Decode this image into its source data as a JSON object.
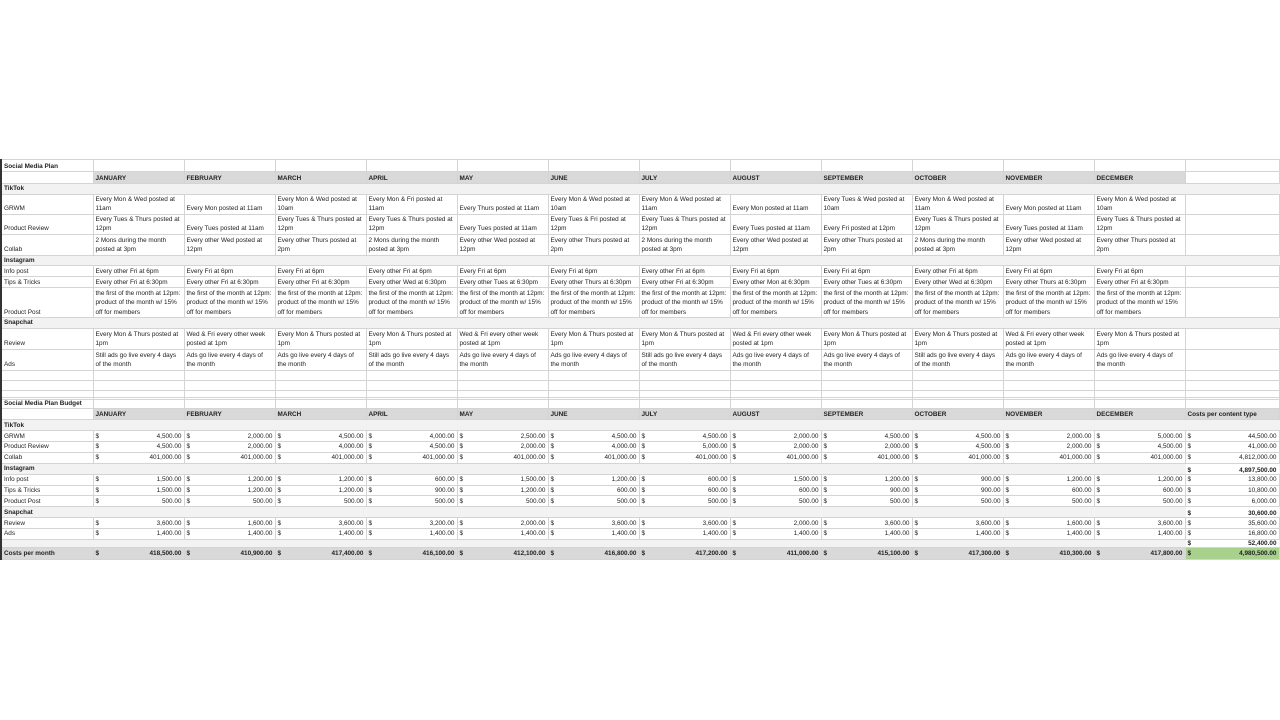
{
  "plan": {
    "title": "Social Media Plan",
    "months": [
      "JANUARY",
      "FEBRUARY",
      "MARCH",
      "APRIL",
      "MAY",
      "JUNE",
      "JULY",
      "AUGUST",
      "SEPTEMBER",
      "OCTOBER",
      "NOVEMBER",
      "DECEMBER"
    ],
    "sections": [
      {
        "name": "TikTok",
        "rows": [
          {
            "label": "GRWM",
            "values": [
              "Every Mon & Wed posted at 11am",
              "Every Mon posted at 11am",
              "Every Mon & Wed posted at 10am",
              "Every Mon & Fri posted at 11am",
              "Every Thurs posted at 11am",
              "Every Mon & Wed posted at 10am",
              "Every Mon & Wed posted at 11am",
              "Every Mon posted at 11am",
              "Every Tues & Wed posted at 10am",
              "Every Mon & Wed posted at 11am",
              "Every Mon posted at 11am",
              "Every Mon & Wed posted at 10am"
            ]
          },
          {
            "label": "Product Review",
            "values": [
              "Every Tues & Thurs posted at 12pm",
              "Every Tues posted at 11am",
              "Every Tues & Thurs posted at 12pm",
              "Every Tues & Thurs posted at 12pm",
              "Every Tues posted at 11am",
              "Every Tues & Fri posted at 12pm",
              "Every Tues & Thurs posted at 12pm",
              "Every Tues posted at 11am",
              "Every Fri posted at 12pm",
              "Every Tues & Thurs posted at 12pm",
              "Every Tues posted at 11am",
              "Every Tues & Thurs posted at 12pm"
            ]
          },
          {
            "label": "Collab",
            "values": [
              "2 Mons during the month posted at 3pm",
              "Every other Wed posted at 12pm",
              "Every other Thurs posted at 2pm",
              "2 Mons during the month posted at 3pm",
              "Every other Wed posted at 12pm",
              "Every other Thurs posted at 2pm",
              "2 Mons during the month posted at 3pm",
              "Every other Wed posted at 12pm",
              "Every other Thurs posted at 2pm",
              "2 Mons during the month posted at 3pm",
              "Every other Wed posted at 12pm",
              "Every other Thurs posted at 2pm"
            ]
          }
        ]
      },
      {
        "name": "Instagram",
        "rows": [
          {
            "label": "Info post",
            "values": [
              "Every other Fri at 6pm",
              "Every Fri at 6pm",
              "Every Fri at 6pm",
              "Every other Fri at 6pm",
              "Every Fri at 6pm",
              "Every Fri at 6pm",
              "Every other Fri at 6pm",
              "Every Fri at 6pm",
              "Every Fri at 6pm",
              "Every other Fri at 6pm",
              "Every Fri at 6pm",
              "Every Fri at 6pm"
            ]
          },
          {
            "label": "Tips & Tricks",
            "values": [
              "Every other Fri at 6:30pm",
              "Every other Fri at 6:30pm",
              "Every other Fri at 6:30pm",
              "Every other Wed at 6:30pm",
              "Every other Tues at 6:30pm",
              "Every other Thurs at 6:30pm",
              "Every other Fri at 6:30pm",
              "Every other Mon at 6:30pm",
              "Every other Tues at 6:30pm",
              "Every other Wed at 6:30pm",
              "Every other Thurs at 6:30pm",
              "Every other Fri at 6:30pm"
            ]
          },
          {
            "label": "Product Post",
            "values": [
              "the first of the month at 12pm: product of the month w/ 15% off for members",
              "the first of the month at 12pm: product of the month w/ 15% off for members",
              "the first of the month at 12pm: product of the month w/ 15% off for members",
              "the first of the month at 12pm: product of the month w/ 15% off for members",
              "the first of the month at 12pm: product of the month w/ 15% off for members",
              "the first of the month at 12pm: product of the month w/ 15% off for members",
              "the first of the month at 12pm: product of the month w/ 15% off for members",
              "the first of the month at 12pm: product of the month w/ 15% off for members",
              "the first of the month at 12pm: product of the month w/ 15% off for members",
              "the first of the month at 12pm: product of the month w/ 15% off for members",
              "the first of the month at 12pm: product of the month w/ 15% off for members",
              "the first of the month at 12pm: product of the month w/ 15% off for members"
            ]
          }
        ]
      },
      {
        "name": "Snapchat",
        "rows": [
          {
            "label": "Review",
            "values": [
              "Every Mon & Thurs posted at 1pm",
              "Wed & Fri every other week posted at 1pm",
              "Every Mon & Thurs posted at 1pm",
              "Every Mon & Thurs posted at 1pm",
              "Wed & Fri every other week posted at 1pm",
              "Every Mon & Thurs posted at 1pm",
              "Every Mon & Thurs posted at 1pm",
              "Wed & Fri every other week posted at 1pm",
              "Every Mon & Thurs posted at 1pm",
              "Every Mon & Thurs posted at 1pm",
              "Wed & Fri every other week posted at 1pm",
              "Every Mon & Thurs posted at 1pm"
            ]
          },
          {
            "label": "Ads",
            "values": [
              "Still ads go live every 4 days of the month",
              "Ads go live every 4 days of the month",
              "Ads go live every 4 days of the month",
              "Still ads go live every 4 days of the month",
              "Ads go live every 4 days of the month",
              "Ads go live every 4 days of the month",
              "Still ads go live every 4 days of the month",
              "Ads go live every 4 days of the month",
              "Ads go live every 4 days of the month",
              "Still ads go live every 4 days of the month",
              "Ads go live every 4 days of the month",
              "Ads go live every 4 days of the month"
            ]
          }
        ]
      }
    ]
  },
  "budget": {
    "title": "Social Media Plan Budget",
    "total_header": "Costs per content type",
    "currency": "$",
    "sections": [
      {
        "name": "TikTok",
        "subtotal": "4,897,500.00",
        "rows": [
          {
            "label": "GRWM",
            "values": [
              "4,500.00",
              "2,000.00",
              "4,500.00",
              "4,000.00",
              "2,500.00",
              "4,500.00",
              "4,500.00",
              "2,000.00",
              "4,500.00",
              "4,500.00",
              "2,000.00",
              "5,000.00"
            ],
            "total": "44,500.00"
          },
          {
            "label": "Product Review",
            "values": [
              "4,500.00",
              "2,000.00",
              "4,000.00",
              "4,500.00",
              "2,000.00",
              "4,000.00",
              "5,000.00",
              "2,000.00",
              "2,000.00",
              "4,500.00",
              "2,000.00",
              "4,500.00"
            ],
            "total": "41,000.00"
          },
          {
            "label": "Collab",
            "values": [
              "401,000.00",
              "401,000.00",
              "401,000.00",
              "401,000.00",
              "401,000.00",
              "401,000.00",
              "401,000.00",
              "401,000.00",
              "401,000.00",
              "401,000.00",
              "401,000.00",
              "401,000.00"
            ],
            "total": "4,812,000.00"
          }
        ]
      },
      {
        "name": "Instagram",
        "subtotal": "30,600.00",
        "rows": [
          {
            "label": "Info post",
            "values": [
              "1,500.00",
              "1,200.00",
              "1,200.00",
              "600.00",
              "1,500.00",
              "1,200.00",
              "600.00",
              "1,500.00",
              "1,200.00",
              "900.00",
              "1,200.00",
              "1,200.00"
            ],
            "total": "13,800.00"
          },
          {
            "label": "Tips & Tricks",
            "values": [
              "1,500.00",
              "1,200.00",
              "1,200.00",
              "900.00",
              "1,200.00",
              "600.00",
              "600.00",
              "600.00",
              "900.00",
              "900.00",
              "600.00",
              "600.00"
            ],
            "total": "10,800.00"
          },
          {
            "label": "Product Post",
            "values": [
              "500.00",
              "500.00",
              "500.00",
              "500.00",
              "500.00",
              "500.00",
              "500.00",
              "500.00",
              "500.00",
              "500.00",
              "500.00",
              "500.00"
            ],
            "total": "6,000.00"
          }
        ]
      },
      {
        "name": "Snapchat",
        "subtotal": "52,400.00",
        "rows": [
          {
            "label": "Review",
            "values": [
              "3,600.00",
              "1,600.00",
              "3,600.00",
              "3,200.00",
              "2,000.00",
              "3,600.00",
              "3,600.00",
              "2,000.00",
              "3,600.00",
              "3,600.00",
              "1,600.00",
              "3,600.00"
            ],
            "total": "35,600.00"
          },
          {
            "label": "Ads",
            "values": [
              "1,400.00",
              "1,400.00",
              "1,400.00",
              "1,400.00",
              "1,400.00",
              "1,400.00",
              "1,400.00",
              "1,400.00",
              "1,400.00",
              "1,400.00",
              "1,400.00",
              "1,400.00"
            ],
            "total": "16,800.00"
          }
        ]
      }
    ],
    "costs_label": "Costs per month",
    "costs_per_month": [
      "418,500.00",
      "410,900.00",
      "417,400.00",
      "416,100.00",
      "412,100.00",
      "416,800.00",
      "417,200.00",
      "411,000.00",
      "415,100.00",
      "417,300.00",
      "410,300.00",
      "417,800.00"
    ],
    "grand_total": "4,980,500.00",
    "grand_total_color": "#a9d18e"
  }
}
